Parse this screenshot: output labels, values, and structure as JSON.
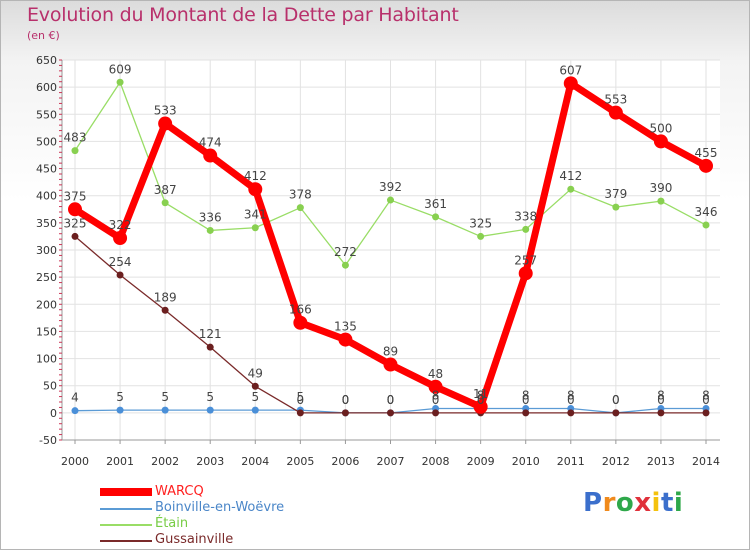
{
  "chart_data": {
    "type": "line",
    "title": "Evolution du Montant de la Dette par Habitant",
    "subtitle": "(en €)",
    "categories": [
      "2000",
      "2001",
      "2002",
      "2003",
      "2004",
      "2005",
      "2006",
      "2007",
      "2008",
      "2009",
      "2010",
      "2011",
      "2012",
      "2013",
      "2014"
    ],
    "ylim": [
      -50,
      650
    ],
    "yticks": [
      -50,
      0,
      50,
      100,
      150,
      200,
      250,
      300,
      350,
      400,
      450,
      500,
      550,
      600,
      650
    ],
    "grid": true,
    "legend_position": "bottom-left",
    "series": [
      {
        "name": "WARCQ",
        "color": "#ff0000",
        "values": [
          375,
          322,
          533,
          474,
          412,
          166,
          135,
          89,
          48,
          11,
          257,
          607,
          553,
          500,
          455
        ]
      },
      {
        "name": "Boinville-en-Woëvre",
        "color": "#5b9bd5",
        "values": [
          4,
          5,
          5,
          5,
          5,
          5,
          0,
          0,
          8,
          8,
          8,
          8,
          0,
          8,
          8
        ]
      },
      {
        "name": "Étain",
        "color": "#99dd66",
        "values": [
          483,
          609,
          387,
          336,
          341,
          378,
          272,
          392,
          361,
          325,
          338,
          412,
          379,
          390,
          346
        ]
      },
      {
        "name": "Gussainville",
        "color": "#7a2a2a",
        "values": [
          325,
          254,
          189,
          121,
          49,
          0,
          0,
          0,
          0,
          0,
          0,
          0,
          0,
          0,
          0
        ]
      }
    ]
  },
  "logo": {
    "text": "Proxiti",
    "letters": [
      "P",
      "r",
      "o",
      "x",
      "i",
      "t",
      "i"
    ],
    "colors": [
      "#3b6fcc",
      "#f08a1c",
      "#2ea84a",
      "#e0313b",
      "#f4c20d",
      "#3b6fcc",
      "#2ea84a"
    ]
  }
}
